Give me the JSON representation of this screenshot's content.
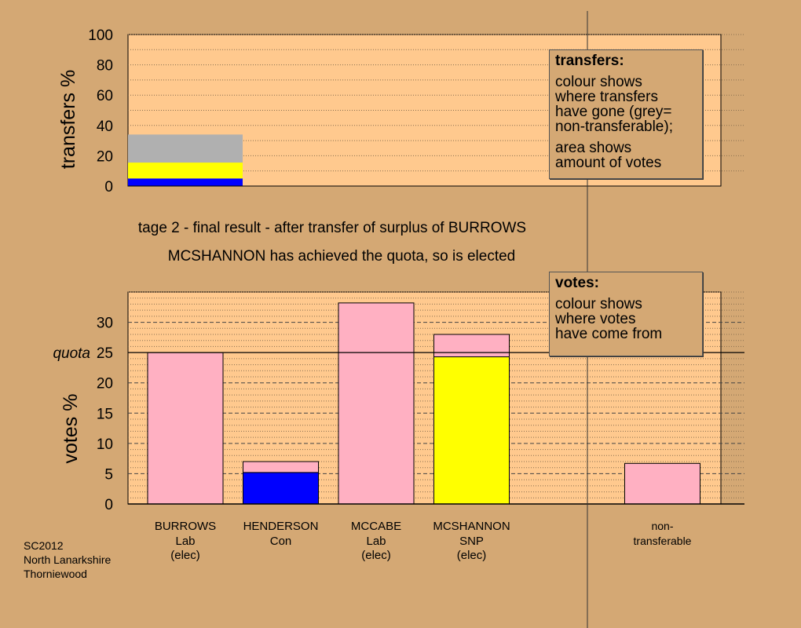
{
  "colors": {
    "background": "#d4a874",
    "plot_bg": "#ffc98e",
    "pink": "#ffb0c2",
    "yellow": "#ffff00",
    "blue": "#0000ff",
    "grey": "#b0b0b0"
  },
  "stage": {
    "line1": "tage 2 - final result - after transfer of surplus of BURROWS",
    "line2": "MCSHANNON has achieved the quota, so is elected"
  },
  "transfers_legend": {
    "title": "transfers:",
    "lines_a": [
      "colour shows",
      "where transfers",
      "have gone (grey=",
      "non-transferable);"
    ],
    "lines_b": [
      "area shows",
      "amount of votes"
    ]
  },
  "votes_legend": {
    "title": "votes:",
    "lines": [
      "colour shows",
      "where votes",
      "have come from"
    ]
  },
  "footer": {
    "lines": [
      "SC2012",
      "North Lanarkshire",
      "Thorniewood"
    ]
  },
  "chart_data": [
    {
      "type": "bar",
      "name": "transfers",
      "ylabel": "transfers %",
      "ylim": [
        0,
        100
      ],
      "yticks": [
        0,
        20,
        40,
        60,
        80,
        100
      ],
      "grid": true,
      "stacks": [
        {
          "segments": [
            {
              "label": "SNP",
              "color": "blue",
              "value": 5
            },
            {
              "label": "SNP",
              "color": "yellow",
              "value": 10.5
            },
            {
              "label": "non-transferable",
              "color": "grey",
              "value": 18.5
            }
          ]
        }
      ]
    },
    {
      "type": "bar",
      "name": "votes",
      "ylabel": "votes %",
      "ylim": [
        0,
        35
      ],
      "yticks": [
        0,
        5,
        10,
        15,
        20,
        25,
        30
      ],
      "quota": {
        "label": "quota",
        "value": 25
      },
      "grid": true,
      "categories": [
        {
          "name": "BURROWS",
          "party": "Lab",
          "status": "(elec)",
          "segments": [
            {
              "color": "pink",
              "value": 25
            }
          ]
        },
        {
          "name": "HENDERSON",
          "party": "Con",
          "status": "",
          "segments": [
            {
              "color": "blue",
              "value": 5.2
            },
            {
              "color": "pink",
              "value": 1.8
            }
          ]
        },
        {
          "name": "MCCABE",
          "party": "Lab",
          "status": "(elec)",
          "segments": [
            {
              "color": "pink",
              "value": 33.2
            }
          ]
        },
        {
          "name": "MCSHANNON",
          "party": "SNP",
          "status": "(elec)",
          "segments": [
            {
              "color": "yellow",
              "value": 24.3
            },
            {
              "color": "pink",
              "value": 3.7
            }
          ]
        },
        {
          "name": "",
          "party": "",
          "status": "",
          "segments": []
        },
        {
          "name": "non-",
          "party": "transferable",
          "status": "",
          "segments": [
            {
              "color": "pink",
              "value": 6.7
            }
          ]
        }
      ]
    }
  ]
}
